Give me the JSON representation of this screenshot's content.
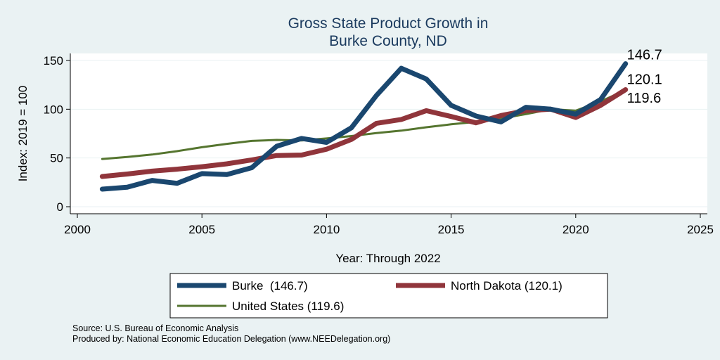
{
  "chart_data": {
    "type": "line",
    "title": [
      "Gross State Product Growth in",
      "Burke County, ND"
    ],
    "xlabel": "Year: Through 2022",
    "ylabel": "Index: 2019 = 100",
    "xlim": [
      2000,
      2025
    ],
    "ylim": [
      0,
      150
    ],
    "xticks": [
      "2000",
      "2005",
      "2010",
      "2015",
      "2020",
      "2025"
    ],
    "yticks": [
      "0",
      "50",
      "100",
      "150"
    ],
    "grid": true,
    "x": [
      2001,
      2002,
      2003,
      2004,
      2005,
      2006,
      2007,
      2008,
      2009,
      2010,
      2011,
      2012,
      2013,
      2014,
      2015,
      2016,
      2017,
      2018,
      2019,
      2020,
      2021,
      2022
    ],
    "series": [
      {
        "name": "Burke",
        "color": "#1a476f",
        "values": [
          18,
          20,
          27,
          24,
          34,
          33,
          40,
          62,
          70,
          66,
          81,
          114,
          142,
          131,
          104,
          93,
          87,
          102,
          100,
          95,
          110,
          146.7
        ],
        "end_label": "146.7"
      },
      {
        "name": "North Dakota",
        "color": "#90353b",
        "values": [
          31,
          33.5,
          36.5,
          38.5,
          41,
          44,
          48,
          52.5,
          53,
          59,
          69,
          85.5,
          89.5,
          98.5,
          92.5,
          86,
          93.5,
          98.5,
          100,
          91.5,
          104,
          120.1
        ],
        "end_label": "120.1"
      },
      {
        "name": "United States",
        "color": "#55752f",
        "values": [
          49,
          51,
          53.5,
          57,
          61,
          64.5,
          67.5,
          68.5,
          68,
          70,
          72.5,
          75.5,
          78,
          81.5,
          84.5,
          87,
          90.5,
          95,
          100,
          98.5,
          108,
          119.6
        ],
        "end_label": "119.6"
      }
    ],
    "legend": {
      "position": "bottom",
      "entries": [
        "Burke  (146.7)",
        "North Dakota (120.1)",
        "United States (119.6)"
      ]
    }
  },
  "notes": {
    "source": "Source: U.S. Bureau of Economic Analysis",
    "produced_by": "Produced by: National Economic Education Delegation (www.NEEDelegation.org)"
  }
}
